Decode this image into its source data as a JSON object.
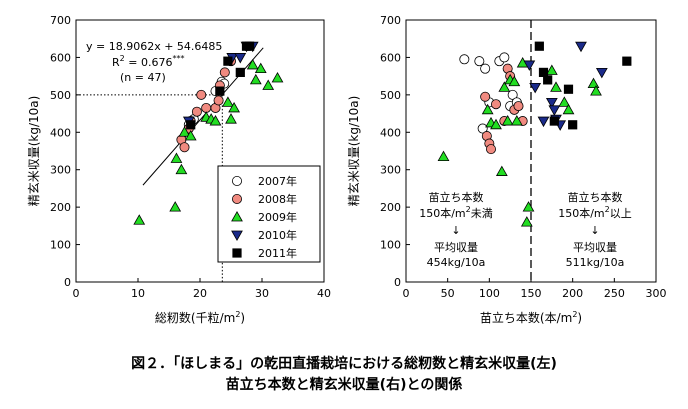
{
  "series_styles": [
    {
      "year": "2007年",
      "shape": "circle",
      "fill": "#ffffff",
      "stroke": "#000000"
    },
    {
      "year": "2008年",
      "shape": "circle",
      "fill": "#f08a80",
      "stroke": "#000000"
    },
    {
      "year": "2009年",
      "shape": "triangle-up",
      "fill": "#22dd22",
      "stroke": "#000000"
    },
    {
      "year": "2010年",
      "shape": "triangle-down",
      "fill": "#1a2a8a",
      "stroke": "#000000"
    },
    {
      "year": "2011年",
      "shape": "square",
      "fill": "#000000",
      "stroke": "#000000"
    }
  ],
  "chart_data": [
    {
      "type": "scatter",
      "xlabel": "総籾数(千粒/m²)",
      "xlabel_main": "総籾数(千粒/m",
      "xlabel_sup": "2",
      "xlabel_tail": ")",
      "ylabel": "精玄米収量(kg/10a)",
      "xlim": [
        0,
        40
      ],
      "ylim": [
        0,
        700
      ],
      "xticks": [
        "0",
        "10",
        "20",
        "30",
        "40"
      ],
      "yticks": [
        "0",
        "100",
        "200",
        "300",
        "400",
        "500",
        "600",
        "700"
      ],
      "grid": false,
      "legend_position": "bottom-right",
      "regression": {
        "slope": 18.9062,
        "intercept": 54.6485,
        "x_range": [
          10.8,
          30.2
        ]
      },
      "annotations": {
        "equation": "y = 18.9062x + 54.6485",
        "r2_main": "R",
        "r2_sup": "2",
        "r2_value": " = 0.676",
        "r2_sig": "***",
        "n": "(n = 47)"
      },
      "reference_lines": [
        {
          "x": 23.6,
          "y": 500
        }
      ],
      "series": [
        {
          "name": "2007年",
          "points": [
            [
              18.2,
              420
            ],
            [
              19,
              435
            ],
            [
              22.5,
              510
            ],
            [
              23.5,
              535
            ],
            [
              23.9,
              530
            ]
          ]
        },
        {
          "name": "2008年",
          "points": [
            [
              17,
              380
            ],
            [
              17.5,
              360
            ],
            [
              18.2,
              410
            ],
            [
              18.5,
              430
            ],
            [
              19.5,
              455
            ],
            [
              20.2,
              500
            ],
            [
              21,
              465
            ],
            [
              22.5,
              465
            ],
            [
              23,
              485
            ],
            [
              23.2,
              525
            ],
            [
              24,
              560
            ],
            [
              25,
              590
            ]
          ]
        },
        {
          "name": "2009年",
          "points": [
            [
              10.2,
              165
            ],
            [
              16,
              200
            ],
            [
              16.2,
              330
            ],
            [
              17,
              300
            ],
            [
              17.5,
              400
            ],
            [
              18.5,
              390
            ],
            [
              21,
              440
            ],
            [
              21.8,
              435
            ],
            [
              22.5,
              430
            ],
            [
              24.5,
              480
            ],
            [
              25,
              435
            ],
            [
              25.5,
              465
            ],
            [
              28.5,
              580
            ],
            [
              29,
              540
            ],
            [
              29.8,
              570
            ],
            [
              31,
              525
            ],
            [
              32.5,
              545
            ]
          ]
        },
        {
          "name": "2010年",
          "points": [
            [
              18.2,
              430
            ],
            [
              25.2,
              600
            ],
            [
              26.5,
              600
            ],
            [
              27.5,
              630
            ],
            [
              28.5,
              630
            ]
          ]
        },
        {
          "name": "2011年",
          "points": [
            [
              18.5,
              420
            ],
            [
              23.2,
              510
            ],
            [
              24.5,
              590
            ],
            [
              26.5,
              560
            ],
            [
              27.5,
              630
            ],
            [
              28,
              630
            ]
          ]
        }
      ]
    },
    {
      "type": "scatter",
      "xlabel": "苗立ち本数(本/m²)",
      "xlabel_main": "苗立ち本数(本/m",
      "xlabel_sup": "2",
      "xlabel_tail": ")",
      "ylabel": "精玄米収量(kg/10a)",
      "xlim": [
        0,
        300
      ],
      "ylim": [
        0,
        700
      ],
      "xticks": [
        "0",
        "50",
        "100",
        "150",
        "200",
        "250",
        "300"
      ],
      "yticks": [
        "0",
        "100",
        "200",
        "300",
        "400",
        "500",
        "600",
        "700"
      ],
      "grid": false,
      "threshold_x": 150,
      "annotations": {
        "left_title": "苗立ち本数",
        "left_cond_main": "150本/m",
        "left_cond_sup": "2",
        "left_cond_tail": "未満",
        "left_arrow": "↓",
        "left_avg": "平均収量",
        "left_avg_value": "454kg/10a",
        "right_title": "苗立ち本数",
        "right_cond_main": "150本/m",
        "right_cond_sup": "2",
        "right_cond_tail": "以上",
        "right_arrow": "↓",
        "right_avg": "平均収量",
        "right_avg_value": "511kg/10a"
      },
      "series": [
        {
          "name": "2007年",
          "points": [
            [
              70,
              595
            ],
            [
              88,
              590
            ],
            [
              95,
              570
            ],
            [
              92,
              410
            ],
            [
              100,
              480
            ],
            [
              112,
              590
            ],
            [
              118,
              600
            ],
            [
              125,
              470
            ],
            [
              128,
              500
            ],
            [
              133,
              480
            ]
          ]
        },
        {
          "name": "2008年",
          "points": [
            [
              95,
              495
            ],
            [
              97,
              390
            ],
            [
              100,
              370
            ],
            [
              102,
              355
            ],
            [
              108,
              475
            ],
            [
              118,
              430
            ],
            [
              122,
              570
            ],
            [
              125,
              550
            ],
            [
              130,
              460
            ],
            [
              135,
              470
            ],
            [
              140,
              430
            ]
          ]
        },
        {
          "name": "2009年",
          "points": [
            [
              45,
              335
            ],
            [
              98,
              460
            ],
            [
              102,
              425
            ],
            [
              108,
              420
            ],
            [
              115,
              295
            ],
            [
              118,
              520
            ],
            [
              122,
              430
            ],
            [
              125,
              540
            ],
            [
              130,
              535
            ],
            [
              133,
              430
            ],
            [
              140,
              585
            ],
            [
              145,
              160
            ],
            [
              147,
              200
            ],
            [
              175,
              565
            ],
            [
              180,
              520
            ],
            [
              190,
              480
            ],
            [
              195,
              460
            ],
            [
              225,
              530
            ],
            [
              228,
              510
            ]
          ]
        },
        {
          "name": "2010年",
          "points": [
            [
              148,
              580
            ],
            [
              155,
              520
            ],
            [
              165,
              430
            ],
            [
              175,
              480
            ],
            [
              178,
              460
            ],
            [
              180,
              435
            ],
            [
              185,
              420
            ],
            [
              210,
              630
            ],
            [
              235,
              560
            ]
          ]
        },
        {
          "name": "2011年",
          "points": [
            [
              160,
              630
            ],
            [
              165,
              560
            ],
            [
              170,
              540
            ],
            [
              178,
              430
            ],
            [
              195,
              515
            ],
            [
              200,
              420
            ],
            [
              265,
              590
            ]
          ]
        }
      ]
    }
  ],
  "caption": {
    "line1": "図２．「ほしまる」の乾田直播栽培における総籾数と精玄米収量(左)",
    "line2": "苗立ち本数と精玄米収量(右)との関係"
  }
}
